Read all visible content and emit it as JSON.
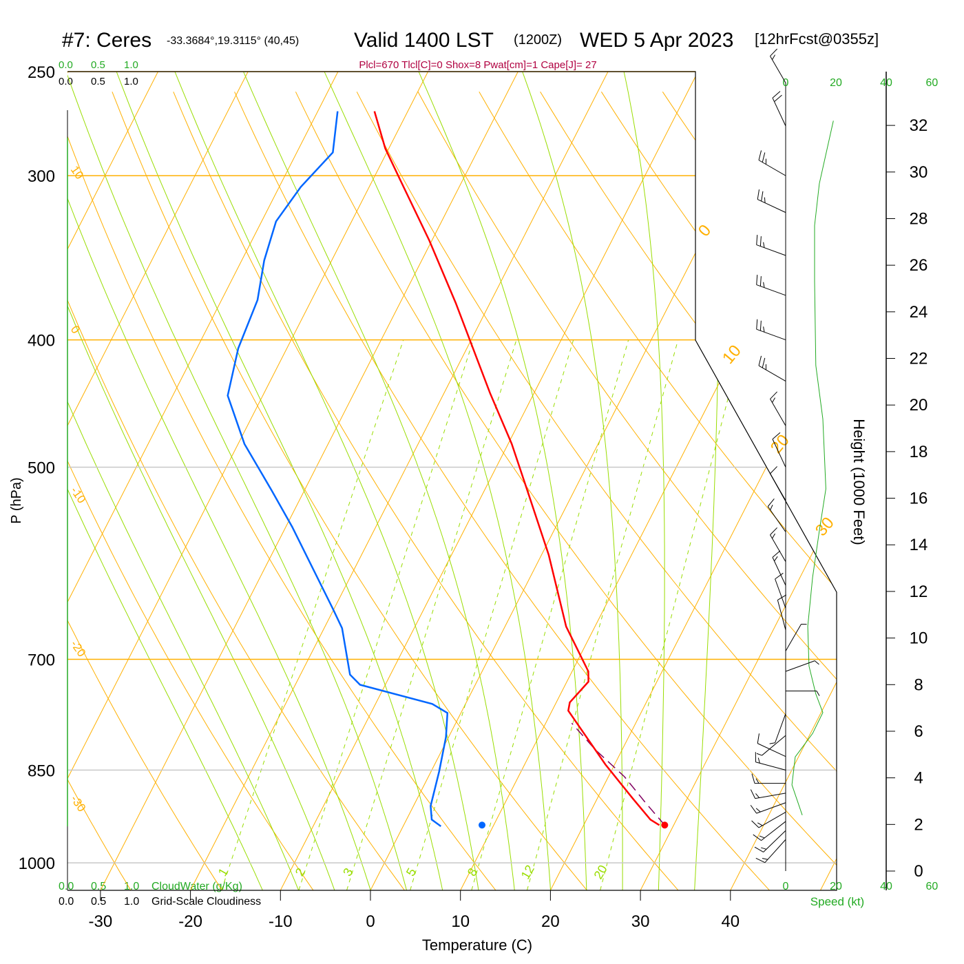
{
  "header": {
    "station": "#7: Ceres",
    "coords": "-33.3684°,19.3115° (40,45)",
    "valid": "Valid 1400 LST",
    "utc": "(1200Z)",
    "date": "WED 5 Apr 2023",
    "forecast": "[12hrFcst@0355z]",
    "indices": "Plcl=670 Tlcl[C]=0 Shox=8 Pwat[cm]=1 Cape[J]= 27"
  },
  "cloud_scales": {
    "ticks": [
      "0.0",
      "0.5",
      "1.0"
    ],
    "cloudwater_label": "CloudWater (g/Kg)",
    "cloudiness_label": "Grid-Scale Cloudiness"
  },
  "colors": {
    "temperature": "#ff0000",
    "dewpoint": "#0066ff",
    "parcel": "#800060",
    "isotherm": "#ffb000",
    "moist": "#99dd00",
    "speed": "#22aa22",
    "indices": "#b00040"
  },
  "chart_data": {
    "type": "skew-t",
    "xlabel": "Temperature (C)",
    "ylabel": "P (hPa)",
    "y2label": "Height (1000 Feet)",
    "speed_label": "Speed (kt)",
    "pressure_ticks": [
      250,
      300,
      400,
      500,
      700,
      850,
      1000
    ],
    "temperature_ticks": [
      -30,
      -20,
      -10,
      0,
      10,
      20,
      30,
      40
    ],
    "height_ticks": [
      0,
      2,
      4,
      6,
      8,
      10,
      12,
      14,
      16,
      18,
      20,
      22,
      24,
      26,
      28,
      30,
      32
    ],
    "speed_ticks": [
      0,
      20,
      40,
      60
    ],
    "isotherm_labels": [
      0,
      10,
      20,
      30
    ],
    "dry_adiabat_labels": [
      10,
      0,
      -10,
      -20,
      -30
    ],
    "mixing_ratio_labels": [
      1,
      2,
      3,
      5,
      8,
      12,
      20
    ],
    "temperature": {
      "p": [
        268,
        286,
        302,
        336,
        375,
        439,
        480,
        523,
        583,
        661,
        694,
        715,
        728,
        755,
        766,
        802,
        842,
        894,
        927,
        936
      ],
      "t": [
        -43.7,
        -40.4,
        -37.0,
        -30.3,
        -23.8,
        -14.9,
        -9.6,
        -5.0,
        0.8,
        6.8,
        9.9,
        11.8,
        12.4,
        11.5,
        11.8,
        15.3,
        19.0,
        24.0,
        27.1,
        28.4
      ]
    },
    "dewpoint": {
      "p": [
        268,
        288,
        306,
        325,
        348,
        373,
        406,
        441,
        480,
        521,
        555,
        641,
        663,
        719,
        732,
        757,
        769,
        802,
        852,
        905,
        927,
        938
      ],
      "t": [
        -47.8,
        -46.0,
        -47.6,
        -48.4,
        -47.5,
        -46.0,
        -45.4,
        -43.9,
        -39.3,
        -33.6,
        -29.3,
        -20.1,
        -18.0,
        -14.5,
        -12.8,
        -3.7,
        -1.5,
        -0.3,
        0.9,
        1.9,
        2.8,
        4.2
      ]
    },
    "surface": {
      "p": 936,
      "t": 29.0,
      "td": 8.7
    },
    "parcel": {
      "p": [
        936,
        900,
        860,
        820,
        783
      ],
      "t": [
        29.0,
        25.6,
        21.8,
        17.0,
        12.9
      ]
    },
    "wind_speed_profile": {
      "height_kft": [
        32.2,
        29.5,
        27.7,
        25.3,
        21.7,
        19.4,
        16.4,
        14.6,
        12.6,
        10.5,
        8.8,
        7.6,
        6.8,
        5.9,
        4.9,
        3.7,
        2.4
      ],
      "speed_kt": [
        19,
        13.4,
        11.5,
        11.5,
        12,
        14.8,
        16,
        13.4,
        10.7,
        8.8,
        9.3,
        12,
        14.8,
        10.7,
        3.8,
        2.5,
        6.6
      ]
    },
    "wind_barbs": [
      {
        "p": 255,
        "dir": 330,
        "spd": 15
      },
      {
        "p": 275,
        "dir": 335,
        "spd": 20
      },
      {
        "p": 300,
        "dir": 300,
        "spd": 25
      },
      {
        "p": 320,
        "dir": 295,
        "spd": 25
      },
      {
        "p": 345,
        "dir": 290,
        "spd": 25
      },
      {
        "p": 370,
        "dir": 290,
        "spd": 25
      },
      {
        "p": 400,
        "dir": 290,
        "spd": 25
      },
      {
        "p": 430,
        "dir": 300,
        "spd": 25
      },
      {
        "p": 465,
        "dir": 330,
        "spd": 15
      },
      {
        "p": 500,
        "dir": 335,
        "spd": 10
      },
      {
        "p": 530,
        "dir": 330,
        "spd": 10
      },
      {
        "p": 560,
        "dir": 325,
        "spd": 15
      },
      {
        "p": 590,
        "dir": 330,
        "spd": 15
      },
      {
        "p": 615,
        "dir": 335,
        "spd": 15
      },
      {
        "p": 640,
        "dir": 340,
        "spd": 10
      },
      {
        "p": 665,
        "dir": 345,
        "spd": 10
      },
      {
        "p": 690,
        "dir": 30,
        "spd": 5
      },
      {
        "p": 715,
        "dir": 70,
        "spd": 5
      },
      {
        "p": 740,
        "dir": 90,
        "spd": 5
      },
      {
        "p": 770,
        "dir": 200,
        "spd": 5
      },
      {
        "p": 800,
        "dir": 230,
        "spd": 5
      },
      {
        "p": 830,
        "dir": 295,
        "spd": 10
      },
      {
        "p": 850,
        "dir": 285,
        "spd": 15
      },
      {
        "p": 870,
        "dir": 270,
        "spd": 15
      },
      {
        "p": 885,
        "dir": 260,
        "spd": 15
      },
      {
        "p": 900,
        "dir": 250,
        "spd": 15
      },
      {
        "p": 915,
        "dir": 240,
        "spd": 15
      },
      {
        "p": 930,
        "dir": 232,
        "spd": 15
      },
      {
        "p": 945,
        "dir": 226,
        "spd": 15
      },
      {
        "p": 960,
        "dir": 222,
        "spd": 15
      }
    ]
  }
}
